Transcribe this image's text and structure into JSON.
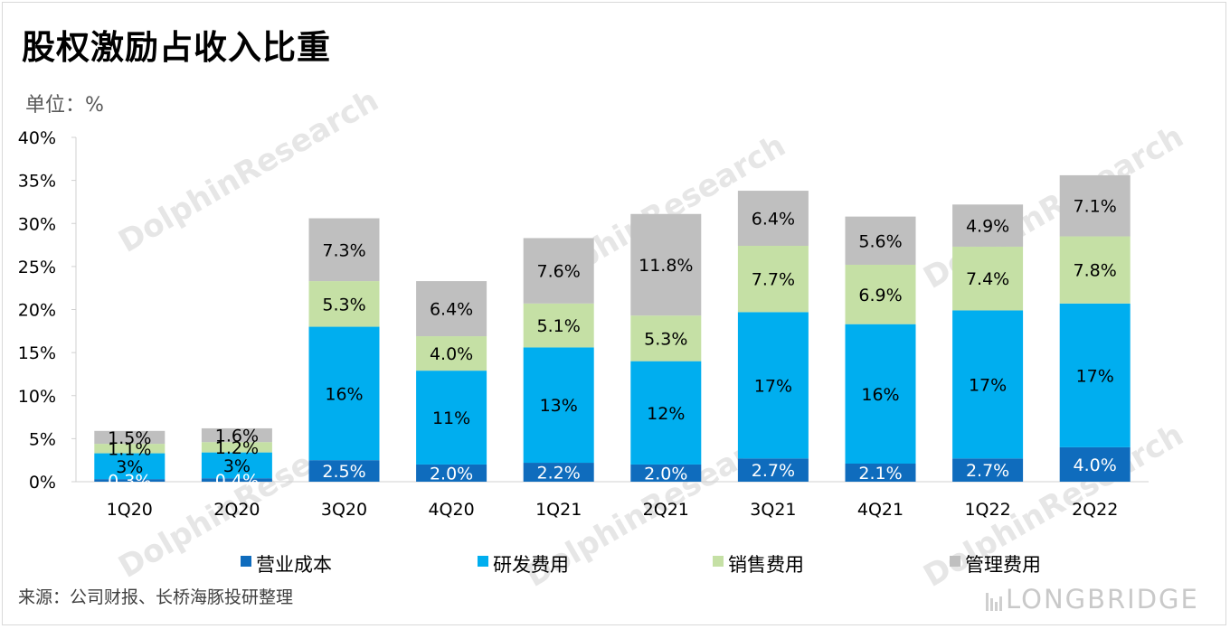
{
  "title": "股权激励占收入比重",
  "unit_label": "单位：%",
  "source": "来源：公司财报、长桥海豚投研整理",
  "brand": "LONGBRIDGE",
  "chart_data": {
    "type": "bar",
    "stacked": true,
    "categories": [
      "1Q20",
      "2Q20",
      "3Q20",
      "4Q20",
      "1Q21",
      "2Q21",
      "3Q21",
      "4Q21",
      "1Q22",
      "2Q22"
    ],
    "ylim": [
      0,
      40
    ],
    "yticks": [
      "0%",
      "5%",
      "10%",
      "15%",
      "20%",
      "25%",
      "30%",
      "35%",
      "40%"
    ],
    "legend_position": "bottom",
    "series": [
      {
        "name": "营业成本",
        "color": "#0f6cbd",
        "values": [
          0.3,
          0.4,
          2.5,
          2.0,
          2.2,
          2.0,
          2.7,
          2.1,
          2.7,
          4.0
        ],
        "labels": [
          "0.3%",
          "0.4%",
          "2.5%",
          "2.0%",
          "2.2%",
          "2.0%",
          "2.7%",
          "2.1%",
          "2.7%",
          "4.0%"
        ]
      },
      {
        "name": "研发费用",
        "color": "#00aeef",
        "values": [
          3.0,
          3.0,
          15.5,
          10.9,
          13.4,
          12.0,
          17.0,
          16.2,
          17.2,
          16.7
        ],
        "labels": [
          "3%",
          "3%",
          "16%",
          "11%",
          "13%",
          "12%",
          "17%",
          "16%",
          "17%",
          "17%"
        ]
      },
      {
        "name": "销售费用",
        "color": "#c5e0a5",
        "values": [
          1.1,
          1.2,
          5.3,
          4.0,
          5.1,
          5.3,
          7.7,
          6.9,
          7.4,
          7.8
        ],
        "labels": [
          "1.1%",
          "1.2%",
          "5.3%",
          "4.0%",
          "5.1%",
          "5.3%",
          "7.7%",
          "6.9%",
          "7.4%",
          "7.8%"
        ]
      },
      {
        "name": "管理费用",
        "color": "#bfbfbf",
        "values": [
          1.5,
          1.6,
          7.3,
          6.4,
          7.6,
          11.8,
          6.4,
          5.6,
          4.9,
          7.1
        ],
        "labels": [
          "1.5%",
          "1.6%",
          "7.3%",
          "6.4%",
          "7.6%",
          "11.8%",
          "6.4%",
          "5.6%",
          "4.9%",
          "7.1%"
        ]
      }
    ]
  }
}
